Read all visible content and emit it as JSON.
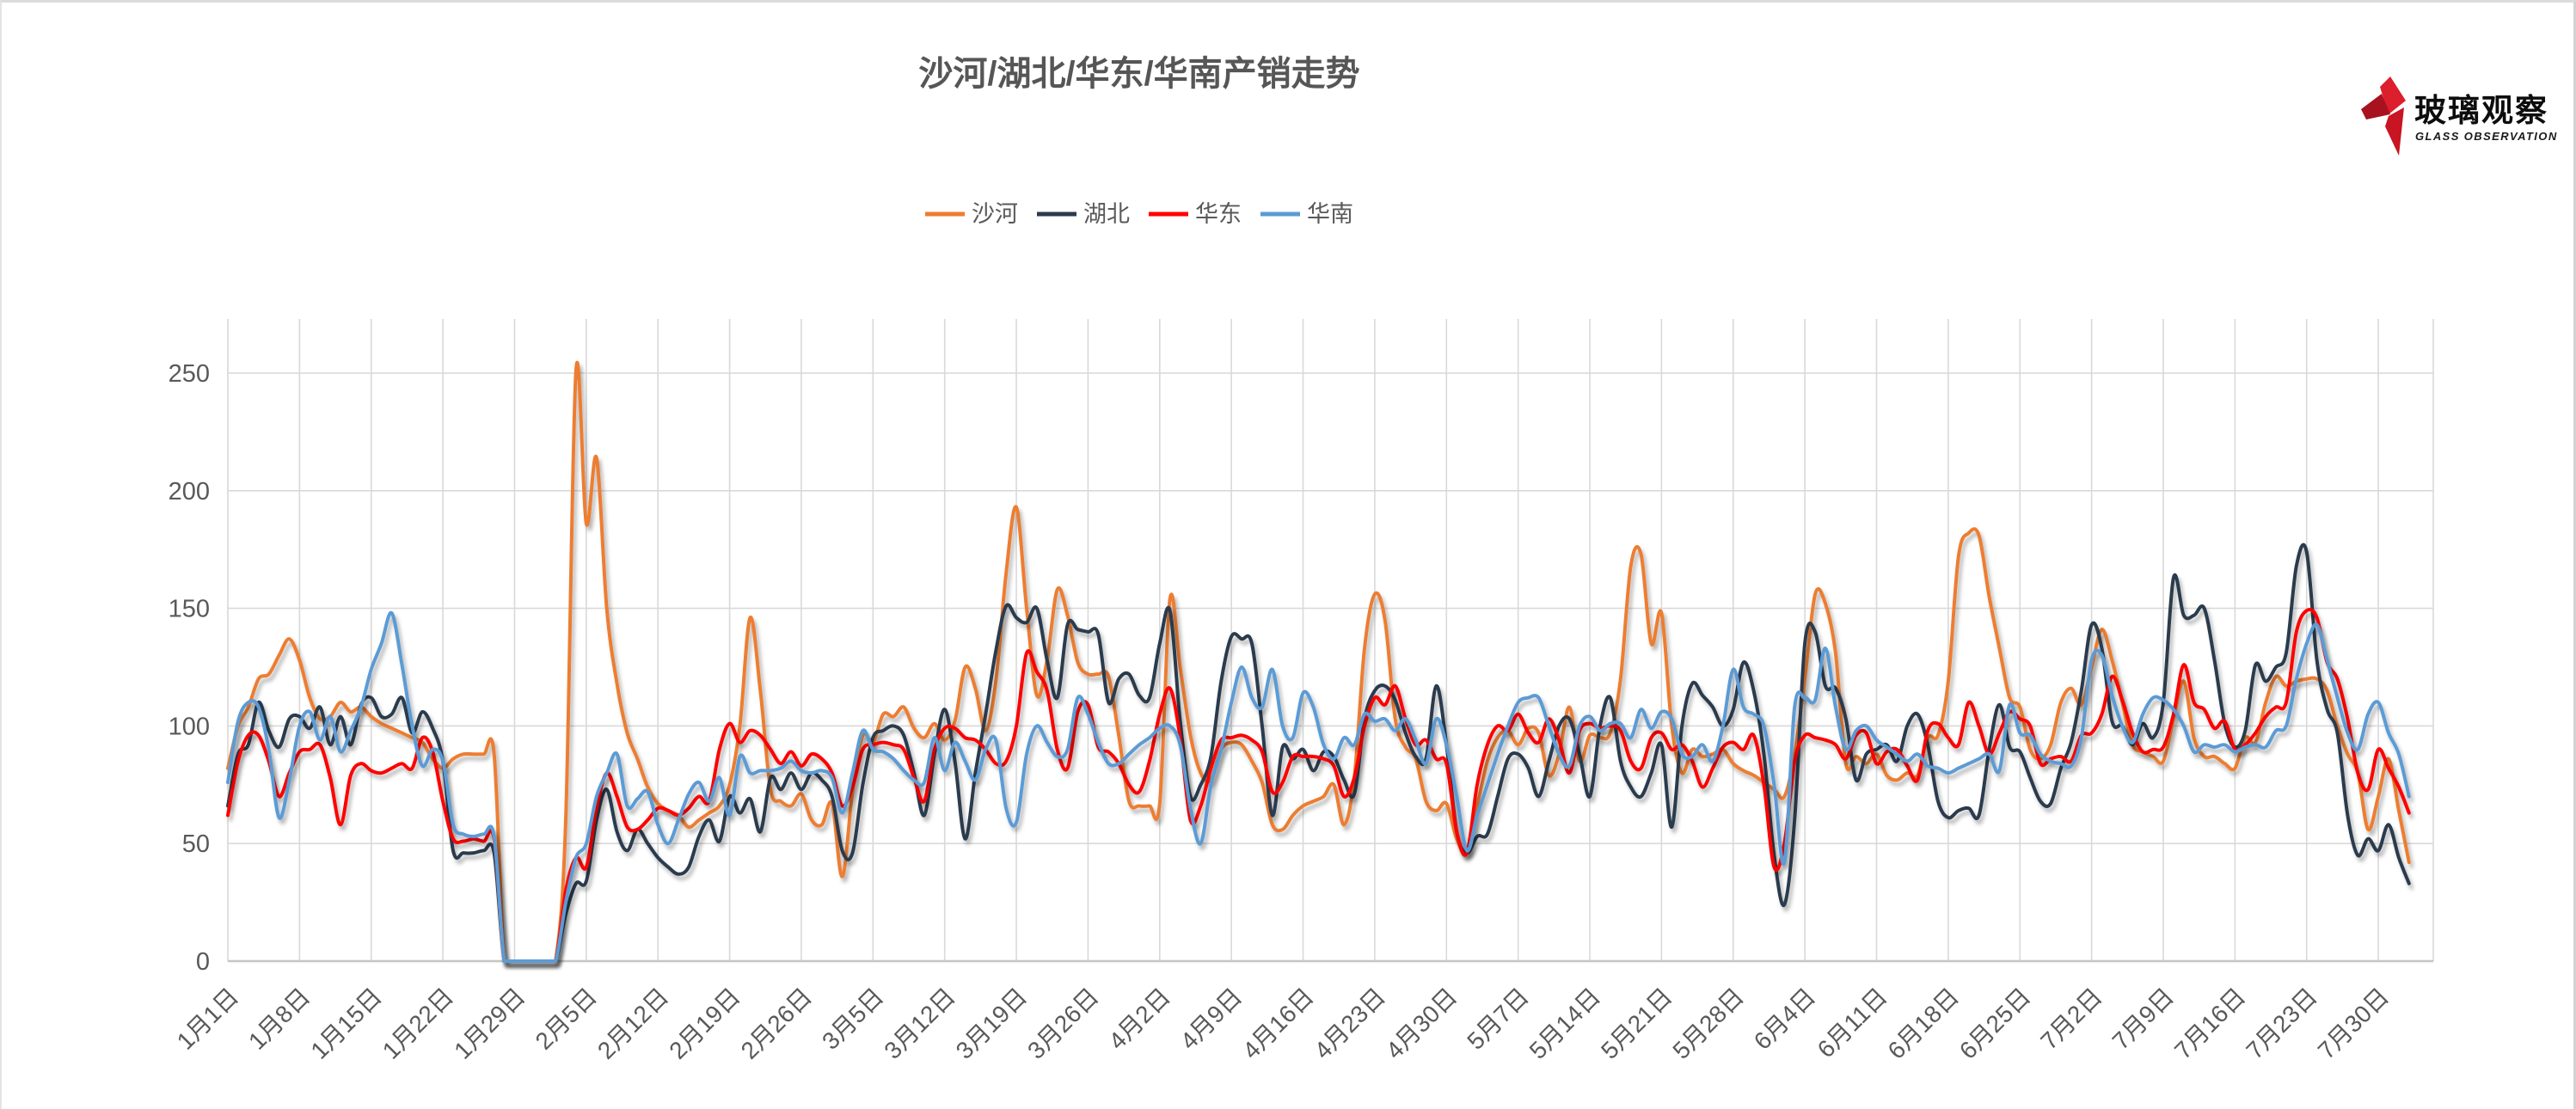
{
  "page": {
    "background": "#ffffff",
    "grid_color": "#d9d9d9",
    "label_color": "#595959"
  },
  "logo": {
    "title": "玻璃观察",
    "subtitle": "GLASS OBSERVATION",
    "star_colors": [
      "#dc1e2d",
      "#a8121f",
      "#c81423"
    ]
  },
  "chart_data": {
    "type": "line",
    "title": "沙河/湖北/华东/华南产销走势",
    "xlabel": "",
    "ylabel": "",
    "ylim": [
      0,
      273
    ],
    "y_ticks": [
      0,
      50,
      100,
      150,
      200,
      250
    ],
    "grid": true,
    "legend_position": "top-center",
    "x_start": "1月1日",
    "x_end": "7月30日",
    "x_tick_interval_days": 7,
    "x_tick_labels": [
      "1月1日",
      "1月8日",
      "1月15日",
      "1月22日",
      "1月29日",
      "2月5日",
      "2月12日",
      "2月19日",
      "2月26日",
      "3月5日",
      "3月12日",
      "3月19日",
      "3月26日",
      "4月2日",
      "4月9日",
      "4月16日",
      "4月23日",
      "4月30日",
      "5月7日",
      "5月14日",
      "5月21日",
      "5月28日",
      "6月4日",
      "6月11日",
      "6月18日",
      "6月25日",
      "7月2日",
      "7月9日",
      "7月16日",
      "7月23日",
      "7月30日"
    ],
    "series": [
      {
        "name": "沙河",
        "color": "#ED7D31",
        "values": [
          82,
          100,
          108,
          120,
          122,
          130,
          137,
          128,
          112,
          103,
          104,
          110,
          106,
          108,
          104,
          101,
          99,
          97,
          95,
          93,
          86,
          82,
          86,
          88,
          88,
          88,
          88,
          0,
          0,
          0,
          0,
          0,
          0,
          60,
          251,
          186,
          214,
          150,
          118,
          97,
          86,
          74,
          67,
          64,
          62,
          57,
          60,
          63,
          66,
          75,
          100,
          146,
          115,
          73,
          68,
          66,
          71,
          60,
          58,
          67,
          36,
          72,
          96,
          93,
          105,
          104,
          108,
          99,
          95,
          101,
          94,
          102,
          125,
          116,
          98,
          119,
          165,
          193,
          150,
          113,
          128,
          158,
          147,
          127,
          122,
          122,
          121,
          96,
          68,
          66,
          66,
          67,
          154,
          125,
          96,
          80,
          77,
          90,
          93,
          92,
          85,
          76,
          58,
          56,
          62,
          66,
          68,
          70,
          75,
          58,
          78,
          133,
          156,
          145,
          103,
          91,
          86,
          68,
          64,
          67,
          52,
          46,
          66,
          85,
          95,
          98,
          92,
          99,
          97,
          79,
          88,
          108,
          85,
          96,
          95,
          97,
          120,
          168,
          173,
          135,
          148,
          100,
          80,
          90,
          87,
          88,
          90,
          84,
          81,
          79,
          76,
          73,
          70,
          88,
          120,
          156,
          152,
          131,
          84,
          87,
          84,
          88,
          79,
          77,
          80,
          79,
          95,
          96,
          119,
          172,
          182,
          181,
          155,
          133,
          112,
          108,
          90,
          86,
          92,
          110,
          116,
          109,
          125,
          141,
          128,
          110,
          92,
          89,
          87,
          85,
          103,
          119,
          95,
          87,
          87,
          84,
          82,
          95,
          93,
          110,
          121,
          117,
          119,
          120,
          120,
          115,
          100,
          88,
          80,
          56,
          70,
          86,
          64,
          42
        ]
      },
      {
        "name": "湖北",
        "color": "#2B3A4D",
        "values": [
          66,
          88,
          92,
          110,
          98,
          91,
          103,
          104,
          99,
          108,
          92,
          104,
          92,
          109,
          112,
          104,
          105,
          112,
          97,
          106,
          99,
          85,
          47,
          46,
          46,
          47,
          46,
          0,
          0,
          0,
          0,
          0,
          0,
          20,
          33,
          34,
          60,
          73,
          55,
          47,
          56,
          50,
          44,
          40,
          37,
          40,
          53,
          60,
          51,
          70,
          63,
          69,
          55,
          78,
          73,
          80,
          73,
          80,
          77,
          70,
          47,
          46,
          75,
          95,
          98,
          100,
          96,
          80,
          62,
          88,
          107,
          85,
          52,
          80,
          105,
          132,
          151,
          146,
          144,
          150,
          128,
          112,
          143,
          141,
          140,
          139,
          110,
          120,
          122,
          113,
          112,
          135,
          149,
          102,
          70,
          75,
          87,
          119,
          138,
          137,
          135,
          100,
          62,
          91,
          86,
          90,
          81,
          89,
          87,
          77,
          71,
          103,
          115,
          117,
          111,
          97,
          87,
          86,
          117,
          92,
          55,
          46,
          53,
          54,
          70,
          86,
          88,
          82,
          70,
          85,
          100,
          103,
          88,
          70,
          100,
          112,
          85,
          74,
          70,
          80,
          92,
          57,
          100,
          118,
          113,
          108,
          100,
          107,
          127,
          115,
          88,
          45,
          24,
          60,
          135,
          140,
          117,
          116,
          103,
          77,
          88,
          90,
          92,
          85,
          100,
          105,
          92,
          68,
          61,
          64,
          65,
          62,
          90,
          109,
          91,
          89,
          78,
          68,
          67,
          82,
          93,
          115,
          143,
          133,
          102,
          100,
          92,
          101,
          95,
          110,
          163,
          147,
          147,
          150,
          128,
          101,
          91,
          98,
          126,
          119,
          125,
          131,
          168,
          174,
          128,
          107,
          97,
          62,
          45,
          52,
          47,
          58,
          44,
          33
        ]
      },
      {
        "name": "华东",
        "color": "#FF0000",
        "values": [
          62,
          85,
          96,
          96,
          85,
          70,
          80,
          89,
          90,
          92,
          78,
          58,
          79,
          84,
          81,
          80,
          82,
          84,
          82,
          95,
          89,
          68,
          52,
          51,
          52,
          51,
          52,
          0,
          0,
          0,
          0,
          0,
          0,
          30,
          44,
          40,
          65,
          80,
          70,
          57,
          56,
          60,
          65,
          64,
          62,
          65,
          70,
          68,
          90,
          101,
          93,
          98,
          96,
          90,
          84,
          89,
          83,
          88,
          86,
          80,
          66,
          74,
          90,
          92,
          93,
          92,
          90,
          78,
          68,
          90,
          99,
          99,
          95,
          94,
          90,
          84,
          85,
          100,
          131,
          123,
          115,
          90,
          82,
          106,
          109,
          91,
          89,
          84,
          75,
          72,
          85,
          105,
          116,
          95,
          60,
          66,
          82,
          94,
          95,
          96,
          94,
          89,
          72,
          76,
          87,
          87,
          87,
          86,
          83,
          70,
          78,
          100,
          112,
          109,
          117,
          103,
          92,
          94,
          86,
          84,
          55,
          46,
          75,
          92,
          100,
          98,
          105,
          97,
          93,
          103,
          94,
          80,
          98,
          101,
          99,
          100,
          98,
          85,
          82,
          95,
          97,
          90,
          92,
          85,
          74,
          82,
          91,
          93,
          90,
          96,
          75,
          40,
          50,
          85,
          96,
          95,
          94,
          92,
          86,
          96,
          97,
          84,
          89,
          90,
          83,
          77,
          98,
          101,
          95,
          92,
          110,
          100,
          88,
          97,
          106,
          103,
          100,
          84,
          86,
          87,
          85,
          96,
          97,
          105,
          121,
          111,
          97,
          89,
          90,
          91,
          105,
          126,
          110,
          107,
          99,
          102,
          90,
          92,
          97,
          104,
          108,
          110,
          140,
          149,
          146,
          127,
          120,
          103,
          80,
          73,
          90,
          82,
          74,
          63
        ]
      },
      {
        "name": "华南",
        "color": "#5B9BD5",
        "values": [
          76,
          102,
          110,
          108,
          90,
          61,
          77,
          100,
          106,
          94,
          104,
          89,
          98,
          108,
          124,
          135,
          148,
          126,
          100,
          83,
          90,
          85,
          58,
          54,
          53,
          54,
          53,
          0,
          0,
          0,
          0,
          0,
          0,
          25,
          44,
          50,
          70,
          80,
          88,
          66,
          69,
          72,
          58,
          50,
          60,
          71,
          76,
          68,
          78,
          62,
          87,
          80,
          81,
          81,
          82,
          85,
          81,
          80,
          81,
          78,
          63,
          80,
          98,
          90,
          89,
          86,
          81,
          77,
          76,
          95,
          81,
          93,
          85,
          77,
          90,
          94,
          65,
          59,
          88,
          100,
          93,
          87,
          90,
          112,
          105,
          93,
          84,
          84,
          88,
          92,
          95,
          99,
          100,
          92,
          65,
          50,
          75,
          90,
          110,
          125,
          112,
          108,
          124,
          100,
          95,
          114,
          108,
          92,
          86,
          95,
          92,
          105,
          102,
          103,
          98,
          103,
          94,
          84,
          103,
          92,
          70,
          47,
          62,
          75,
          88,
          100,
          110,
          112,
          112,
          100,
          88,
          83,
          100,
          104,
          98,
          101,
          101,
          95,
          107,
          99,
          106,
          103,
          88,
          87,
          92,
          85,
          100,
          124,
          108,
          105,
          100,
          75,
          42,
          108,
          112,
          111,
          133,
          108,
          90,
          98,
          100,
          94,
          91,
          88,
          85,
          88,
          83,
          82,
          80,
          82,
          84,
          86,
          88,
          81,
          109,
          97,
          96,
          88,
          85,
          84,
          83,
          95,
          128,
          130,
          113,
          100,
          93,
          105,
          112,
          111,
          107,
          100,
          89,
          92,
          91,
          92,
          89,
          91,
          92,
          91,
          98,
          100,
          120,
          135,
          143,
          128,
          112,
          97,
          90,
          105,
          110,
          97,
          88,
          70
        ]
      }
    ]
  }
}
